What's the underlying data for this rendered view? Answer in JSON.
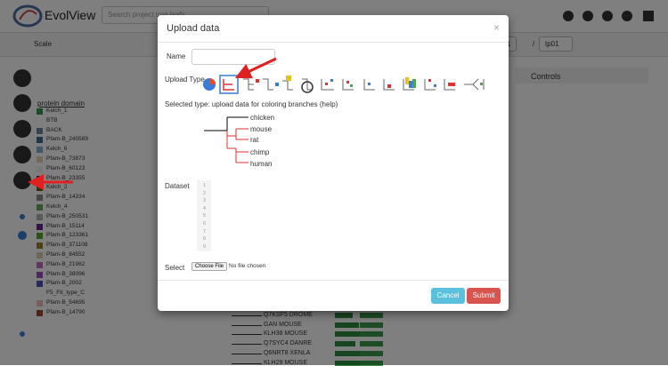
{
  "header": {
    "logo": "EvolView",
    "search_placeholder": "Search project tree leafs"
  },
  "toolbar": {
    "scale": "Scale",
    "project_select": "1",
    "separator": "/",
    "tree_select": "tp01"
  },
  "controls": {
    "title": "Controls"
  },
  "legend": {
    "title": "protein domain",
    "items": [
      {
        "label": "Kelch_1",
        "color": "#2e9a44"
      },
      {
        "label": "BTB",
        "color": null
      },
      {
        "label": "BACK",
        "color": "#6a86a8"
      },
      {
        "label": "Pfam-B_240589",
        "color": "#3a6c9c"
      },
      {
        "label": "Kelch_6",
        "color": "#7aaed6"
      },
      {
        "label": "Pfam-B_73873",
        "color": "#e0d2a8"
      },
      {
        "label": "Pfam-B_60123",
        "color": "#f2f2f2"
      },
      {
        "label": "Pfam-B_23355",
        "color": "#1c1c8e"
      },
      {
        "label": "Kelch_2",
        "color": "#6e5c1c"
      },
      {
        "label": "Pfam-B_14334",
        "color": "#8c8c8c"
      },
      {
        "label": "Kelch_4",
        "color": "#5fae50"
      },
      {
        "label": "Pfam-B_250531",
        "color": "#b0b0b0"
      },
      {
        "label": "Pfam-B_15114",
        "color": "#6e1ca0"
      },
      {
        "label": "Pfam-B_123361",
        "color": "#4eaa1c"
      },
      {
        "label": "Pfam-B_371108",
        "color": "#a0801c"
      },
      {
        "label": "Pfam-B_84552",
        "color": "#dccaa8"
      },
      {
        "label": "Pfam-B_21962",
        "color": "#cc66cc"
      },
      {
        "label": "Pfam-B_38096",
        "color": "#a844cc"
      },
      {
        "label": "Pfam-B_2002",
        "color": "#4c4cc8"
      },
      {
        "label": "F5_F8_type_C",
        "color": null
      },
      {
        "label": "Pfam-B_54695",
        "color": "#f0b8b8"
      },
      {
        "label": "Pfam-B_14790",
        "color": "#a84422"
      }
    ]
  },
  "tree": {
    "leaves": [
      "Q7KSF5 DROME",
      "GAN MOUSE",
      "KLH38 MOUSE",
      "Q7SYC4 DANRE",
      "Q6NRT8 XENLA",
      "KLH29 MOUSE"
    ]
  },
  "modal": {
    "title": "Upload data",
    "close": "×",
    "name_label": "Name",
    "upload_type_label": "Upload Type",
    "selected_type": "Selected type: upload data for coloring branches (help)",
    "example_leaves": [
      "chicken",
      "mouse",
      "rat",
      "chimp",
      "human"
    ],
    "dataset_label": "Dataset",
    "line_numbers": [
      1,
      2,
      3,
      4,
      5,
      6,
      7,
      8,
      9
    ],
    "select_label": "Select",
    "choose_file": "Choose File",
    "no_file": "No file chosen",
    "cancel": "Cancel",
    "submit": "Submit"
  }
}
